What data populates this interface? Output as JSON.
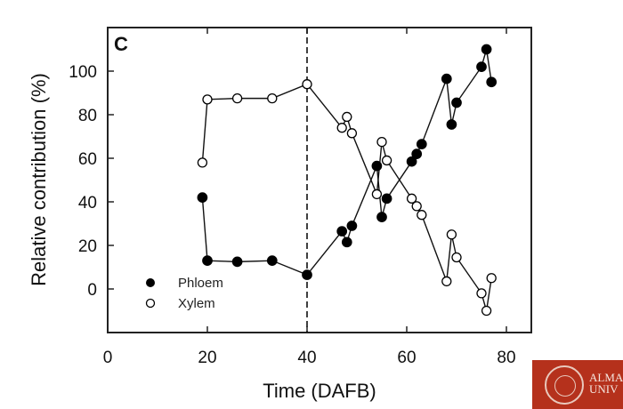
{
  "chart_data": {
    "type": "line",
    "panel_label": "C",
    "xlabel": "Time (DAFB)",
    "ylabel": "Relative contribution (%)",
    "xlim": [
      0,
      85
    ],
    "ylim": [
      -20,
      120
    ],
    "xticks": [
      0,
      20,
      40,
      60,
      80
    ],
    "yticks": [
      0,
      20,
      40,
      60,
      80,
      100
    ],
    "grid": false,
    "legend_position": "bottom-left",
    "reference_line": {
      "x": 40,
      "style": "dashed"
    },
    "series": [
      {
        "name": "Phloem",
        "marker": "filled-circle",
        "x": [
          19,
          20,
          26,
          33,
          40,
          47,
          48,
          49,
          54,
          55,
          56,
          61,
          62,
          63,
          68,
          69,
          70,
          75,
          76,
          77
        ],
        "y": [
          42,
          13,
          12.5,
          13,
          6.5,
          26.5,
          21.5,
          29,
          56.5,
          33,
          41.5,
          58.5,
          62,
          66.5,
          96.5,
          75.5,
          85.5,
          102,
          110,
          95
        ]
      },
      {
        "name": "Xylem",
        "marker": "open-circle",
        "x": [
          19,
          20,
          26,
          33,
          40,
          47,
          48,
          49,
          54,
          55,
          56,
          61,
          62,
          63,
          68,
          69,
          70,
          75,
          76,
          77
        ],
        "y": [
          58,
          87,
          87.5,
          87.5,
          94,
          74,
          79,
          71.5,
          43.5,
          67.5,
          59,
          41.5,
          38,
          34,
          3.5,
          25,
          14.5,
          -2,
          -10,
          5
        ]
      }
    ]
  },
  "logo": {
    "text_line1": "ALMA",
    "text_line2": "UNIV",
    "color": "#b5311c"
  }
}
